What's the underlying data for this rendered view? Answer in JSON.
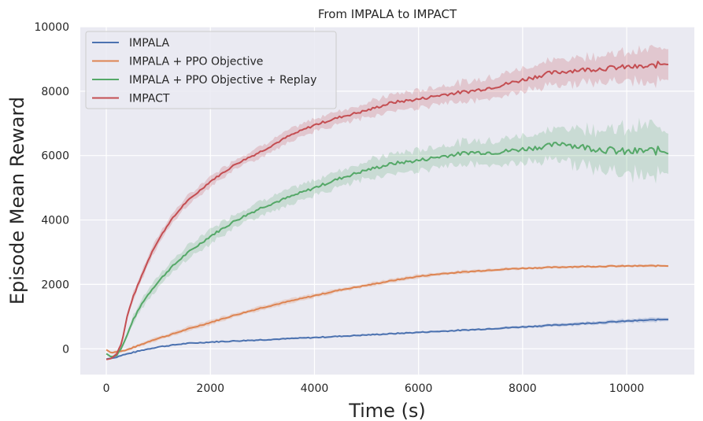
{
  "chart_data": {
    "type": "line",
    "title": "From IMPALA to IMPACT",
    "xlabel": "Time (s)",
    "ylabel": "Episode Mean Reward",
    "xlim": [
      -500,
      11300
    ],
    "ylim": [
      -800,
      10000
    ],
    "xticks": [
      0,
      2000,
      4000,
      6000,
      8000,
      10000
    ],
    "yticks": [
      0,
      2000,
      4000,
      6000,
      8000,
      10000
    ],
    "grid": true,
    "legend_position": "upper-left",
    "background_color": "#eaeaf2",
    "series": [
      {
        "name": "IMPALA",
        "color": "#4c72b0",
        "x": [
          0,
          150,
          300,
          500,
          700,
          1000,
          1500,
          2000,
          3000,
          4000,
          5000,
          6000,
          7000,
          8000,
          9000,
          10000,
          10800
        ],
        "y": [
          -320,
          -280,
          -200,
          -120,
          -40,
          60,
          160,
          210,
          280,
          350,
          430,
          510,
          590,
          680,
          770,
          860,
          920
        ],
        "band": [
          0,
          0,
          0,
          0,
          0,
          20,
          20,
          20,
          25,
          25,
          25,
          30,
          30,
          40,
          50,
          60,
          70
        ]
      },
      {
        "name": "IMPALA + PPO Objective",
        "color": "#dd8452",
        "x": [
          0,
          100,
          200,
          350,
          500,
          700,
          900,
          1200,
          1500,
          2000,
          2500,
          3000,
          3500,
          4000,
          4500,
          5000,
          5500,
          6000,
          6500,
          7000,
          7500,
          8000,
          9000,
          10000,
          10800
        ],
        "y": [
          -30,
          -130,
          -80,
          -60,
          30,
          150,
          280,
          420,
          580,
          820,
          1060,
          1280,
          1470,
          1650,
          1830,
          1970,
          2120,
          2250,
          2340,
          2400,
          2460,
          2500,
          2550,
          2570,
          2580
        ],
        "band": [
          0,
          30,
          40,
          40,
          50,
          50,
          60,
          60,
          70,
          70,
          70,
          70,
          70,
          70,
          60,
          60,
          60,
          60,
          50,
          50,
          50,
          40,
          40,
          40,
          40
        ]
      },
      {
        "name": "IMPALA + PPO Objective + Replay",
        "color": "#55a868",
        "x": [
          0,
          100,
          200,
          300,
          400,
          500,
          700,
          900,
          1200,
          1500,
          2000,
          2500,
          3000,
          3500,
          4000,
          4500,
          5000,
          5500,
          6000,
          6500,
          7000,
          7500,
          8000,
          8500,
          8800,
          9000,
          9500,
          10000,
          10400,
          10800
        ],
        "y": [
          -150,
          -260,
          -190,
          50,
          420,
          850,
          1450,
          1900,
          2450,
          2900,
          3500,
          4000,
          4400,
          4700,
          5000,
          5300,
          5550,
          5750,
          5850,
          5990,
          6100,
          6100,
          6200,
          6300,
          6400,
          6300,
          6200,
          6100,
          6150,
          6150
        ],
        "band": [
          0,
          40,
          60,
          80,
          100,
          120,
          150,
          170,
          190,
          200,
          210,
          220,
          220,
          230,
          240,
          260,
          280,
          300,
          320,
          340,
          360,
          380,
          420,
          450,
          480,
          560,
          640,
          720,
          760,
          780
        ]
      },
      {
        "name": "IMPACT",
        "color": "#c44e52",
        "x": [
          0,
          100,
          200,
          300,
          400,
          500,
          700,
          900,
          1200,
          1500,
          2000,
          2500,
          3000,
          3500,
          4000,
          4500,
          5000,
          5500,
          6000,
          6500,
          7000,
          7500,
          8000,
          8500,
          9000,
          9500,
          10000,
          10400,
          10800
        ],
        "y": [
          -330,
          -300,
          -150,
          200,
          1000,
          1550,
          2350,
          3100,
          3900,
          4500,
          5200,
          5750,
          6150,
          6600,
          6950,
          7200,
          7400,
          7650,
          7750,
          7900,
          8000,
          8150,
          8350,
          8550,
          8650,
          8700,
          8750,
          8750,
          8900
        ],
        "band": [
          0,
          40,
          60,
          90,
          110,
          120,
          130,
          140,
          150,
          150,
          150,
          160,
          170,
          180,
          200,
          210,
          230,
          250,
          270,
          290,
          310,
          330,
          360,
          380,
          400,
          430,
          450,
          500,
          600
        ]
      }
    ]
  }
}
